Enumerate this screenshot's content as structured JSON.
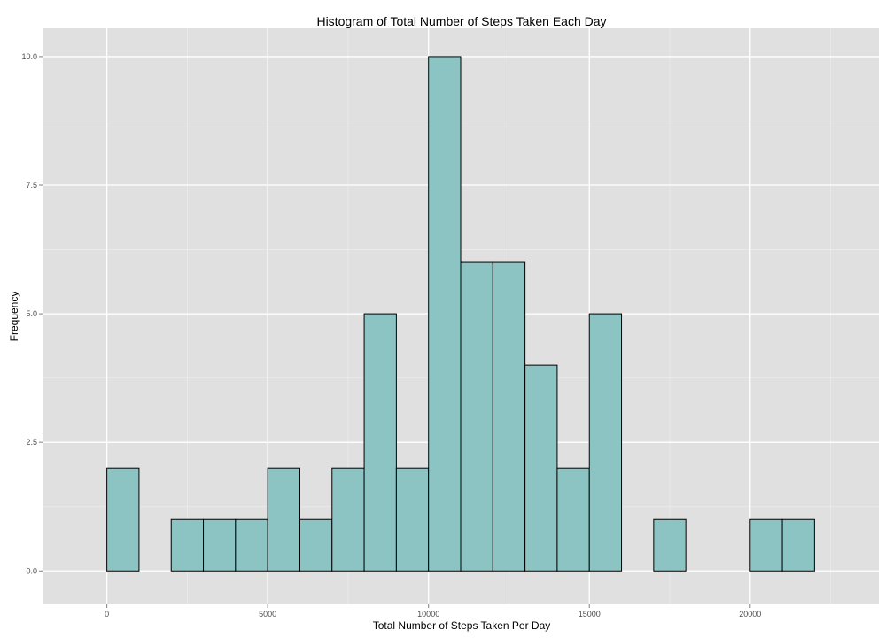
{
  "chart_data": {
    "type": "bar",
    "title": "Histogram of Total Number of Steps Taken Each Day",
    "xlabel": "Total Number of Steps Taken Per Day",
    "ylabel": "Frequency",
    "xlim": [
      -2000,
      24000
    ],
    "ylim": [
      -0.65,
      10.55
    ],
    "bin_width": 1000,
    "bins": [
      {
        "start": -1000,
        "end": 0,
        "count": 0
      },
      {
        "start": 0,
        "end": 1000,
        "count": 2
      },
      {
        "start": 1000,
        "end": 2000,
        "count": 0
      },
      {
        "start": 2000,
        "end": 3000,
        "count": 1
      },
      {
        "start": 3000,
        "end": 4000,
        "count": 1
      },
      {
        "start": 4000,
        "end": 5000,
        "count": 1
      },
      {
        "start": 5000,
        "end": 6000,
        "count": 2
      },
      {
        "start": 6000,
        "end": 7000,
        "count": 1
      },
      {
        "start": 7000,
        "end": 8000,
        "count": 2
      },
      {
        "start": 8000,
        "end": 9000,
        "count": 5
      },
      {
        "start": 9000,
        "end": 10000,
        "count": 2
      },
      {
        "start": 10000,
        "end": 11000,
        "count": 10
      },
      {
        "start": 11000,
        "end": 12000,
        "count": 6
      },
      {
        "start": 12000,
        "end": 13000,
        "count": 6
      },
      {
        "start": 13000,
        "end": 14000,
        "count": 4
      },
      {
        "start": 14000,
        "end": 15000,
        "count": 2
      },
      {
        "start": 15000,
        "end": 16000,
        "count": 5
      },
      {
        "start": 16000,
        "end": 17000,
        "count": 0
      },
      {
        "start": 17000,
        "end": 18000,
        "count": 1
      },
      {
        "start": 18000,
        "end": 19000,
        "count": 0
      },
      {
        "start": 19000,
        "end": 20000,
        "count": 0
      },
      {
        "start": 20000,
        "end": 21000,
        "count": 1
      },
      {
        "start": 21000,
        "end": 22000,
        "count": 1
      },
      {
        "start": 22000,
        "end": 23000,
        "count": 0
      }
    ],
    "x_ticks": [
      0,
      5000,
      10000,
      15000,
      20000
    ],
    "x_tick_labels": [
      "0",
      "5000",
      "10000",
      "15000",
      "20000"
    ],
    "y_ticks": [
      0,
      2.5,
      5,
      7.5,
      10
    ],
    "y_tick_labels": [
      "0.0",
      "2.5",
      "5.0",
      "7.5",
      "10.0"
    ],
    "grid": true,
    "legend": "none",
    "colors": {
      "bar_fill": "#8cc4c4",
      "bar_stroke": "#000000",
      "panel_bg": "#e0e0e0",
      "grid_major": "#ffffff",
      "grid_minor": "#ebebeb"
    }
  }
}
